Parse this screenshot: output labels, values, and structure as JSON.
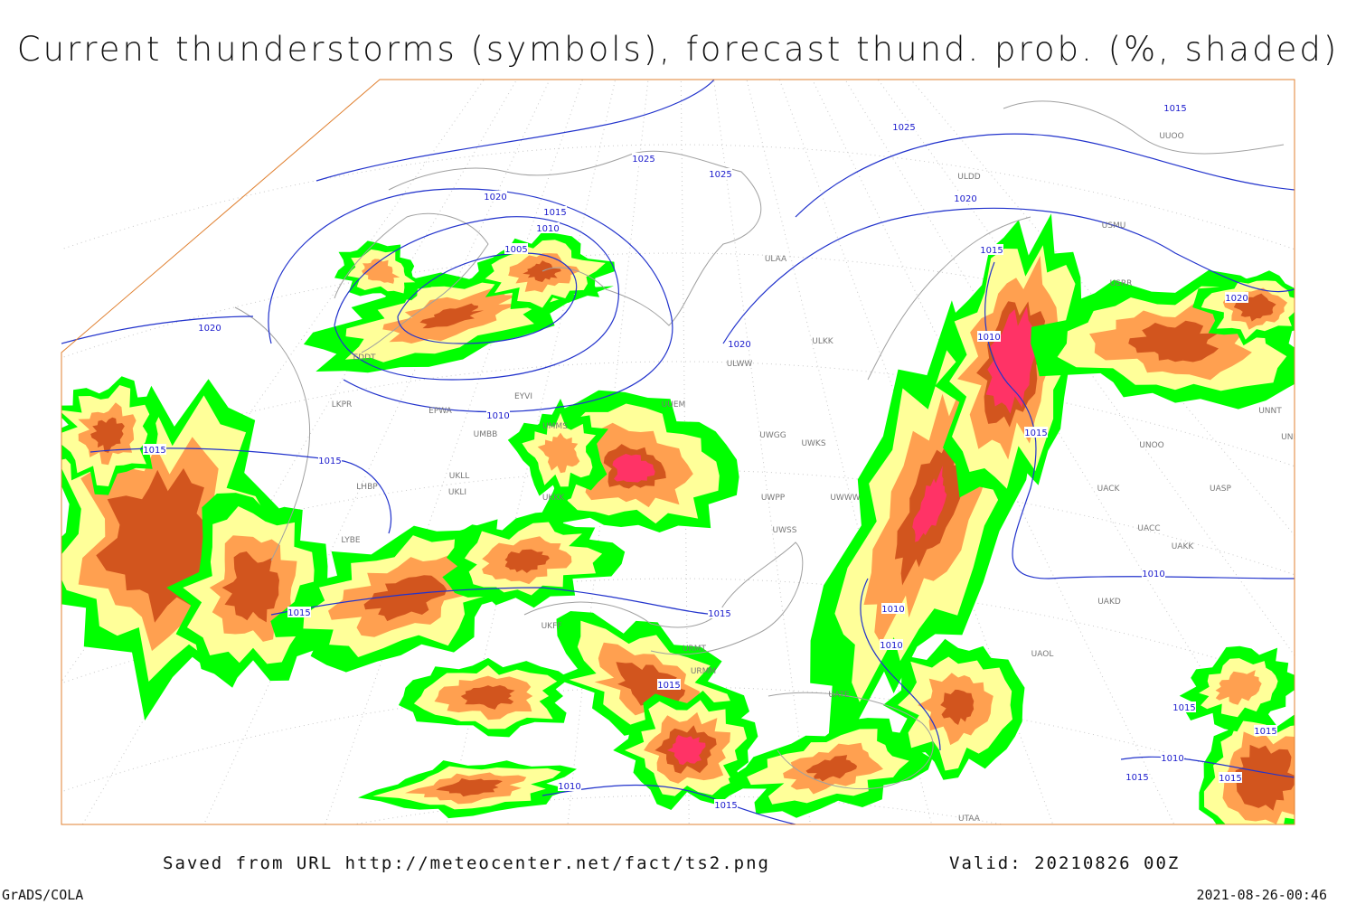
{
  "header": {
    "title": "Current thunderstorms (symbols), forecast thund. prob. (%, shaded)"
  },
  "footer": {
    "source": "Saved from URL http://meteocenter.net/fact/ts2.png",
    "valid": "Valid: 20210826 00Z",
    "credit": "GrADS/COLA",
    "timestamp": "2021-08-26-00:46"
  },
  "map": {
    "isobar_labels": [
      "1015",
      "1025",
      "1025",
      "1025",
      "1020",
      "1020",
      "1015",
      "1010",
      "1005",
      "1015",
      "1020",
      "1020",
      "1020",
      "1010",
      "1010",
      "1015",
      "1015",
      "1015",
      "1015",
      "1015",
      "1010",
      "1010",
      "1010",
      "1015",
      "1010",
      "1015",
      "1010",
      "1015",
      "1015",
      "1015",
      "1015"
    ],
    "stations": [
      "ULAA",
      "ULDD",
      "USMU",
      "ULWW",
      "ULKK",
      "UUEM",
      "UWGG",
      "UWKS",
      "UWWW",
      "UWPP",
      "UWSS",
      "EPWA",
      "EYVI",
      "UMMS",
      "UMBB",
      "UKLL",
      "UKLI",
      "LKPR",
      "LHBP",
      "LYBE",
      "UKKK",
      "UKFF",
      "URMT",
      "URMM",
      "UACC",
      "UAKK",
      "UASP",
      "UACK",
      "UNBB",
      "UNNT",
      "UNOO",
      "UTAA",
      "UATE",
      "UAKD",
      "UAOL",
      "EDDT",
      "UUOO",
      "USRR"
    ]
  }
}
